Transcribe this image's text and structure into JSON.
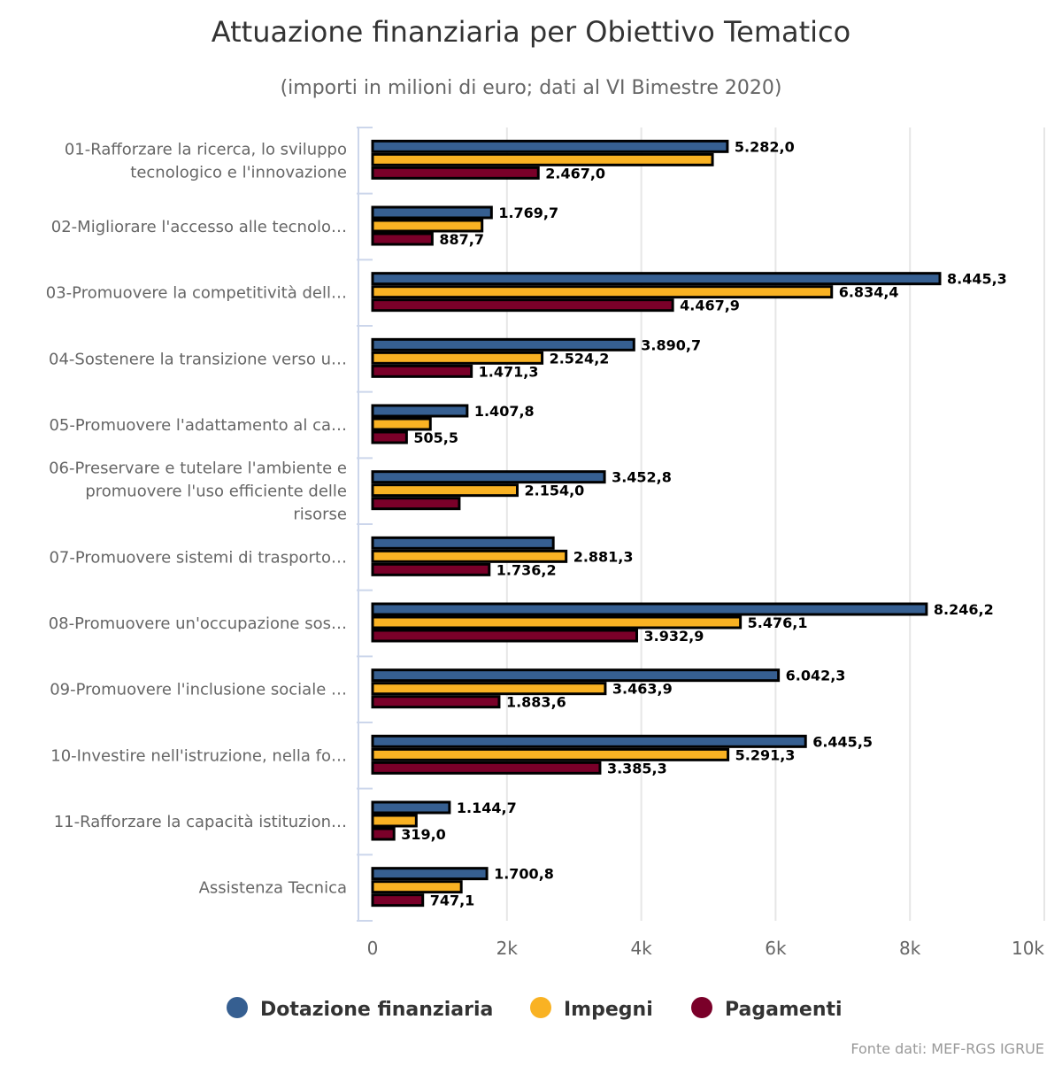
{
  "chart_data": {
    "type": "bar",
    "orientation": "horizontal",
    "title": "Attuazione finanziaria per Obiettivo Tematico",
    "subtitle": "(importi in milioni di euro; dati al VI Bimestre 2020)",
    "categories": [
      [
        "01-Rafforzare la ricerca, lo sviluppo",
        "tecnologico e l'innovazione"
      ],
      [
        "02-Migliorare l'accesso alle tecnolo…"
      ],
      [
        "03-Promuovere la competitività dell…"
      ],
      [
        "04-Sostenere la transizione verso u…"
      ],
      [
        "05-Promuovere l'adattamento al ca…"
      ],
      [
        "06-Preservare e tutelare l'ambiente e",
        "promuovere l'uso efficiente delle",
        "risorse"
      ],
      [
        "07-Promuovere sistemi di trasporto…"
      ],
      [
        "08-Promuovere un'occupazione sos…"
      ],
      [
        "09-Promuovere l'inclusione sociale …"
      ],
      [
        "10-Investire nell'istruzione, nella fo…"
      ],
      [
        "11-Rafforzare la capacità istituzion…"
      ],
      [
        "Assistenza Tecnica"
      ]
    ],
    "series": [
      {
        "name": "Dotazione finanziaria",
        "color": "#365f91",
        "values": [
          5282.0,
          1769.7,
          8445.3,
          3890.7,
          1407.8,
          3452.8,
          2690,
          8246.2,
          6042.3,
          6445.5,
          1144.7,
          1700.8
        ],
        "labels": [
          "5.282,0",
          "1.769,7",
          "8.445,3",
          "3.890,7",
          "1.407,8",
          "3.452,8",
          null,
          "8.246,2",
          "6.042,3",
          "6.445,5",
          "1.144,7",
          "1.700,8"
        ]
      },
      {
        "name": "Impegni",
        "color": "#f9b223",
        "values": [
          5060,
          1630,
          6834.4,
          2524.2,
          860,
          2154.0,
          2881.3,
          5476.1,
          3463.9,
          5291.3,
          650,
          1320
        ],
        "labels": [
          null,
          null,
          "6.834,4",
          "2.524,2",
          null,
          "2.154,0",
          "2.881,3",
          "5.476,1",
          "3.463,9",
          "5.291,3",
          null,
          null
        ]
      },
      {
        "name": "Pagamenti",
        "color": "#7a0029",
        "values": [
          2467.0,
          887.7,
          4467.9,
          1471.3,
          505.5,
          1290,
          1736.2,
          3932.9,
          1883.6,
          3385.3,
          319.0,
          747.1
        ],
        "labels": [
          "2.467,0",
          "887,7",
          "4.467,9",
          "1.471,3",
          "505,5",
          null,
          "1.736,2",
          "3.932,9",
          "1.883,6",
          "3.385,3",
          "319,0",
          "747,1"
        ]
      }
    ],
    "xlim": [
      0,
      10000
    ],
    "ticks": [
      0,
      2000,
      4000,
      6000,
      8000,
      10000
    ],
    "tick_labels": [
      "0",
      "2k",
      "4k",
      "6k",
      "8k",
      "10k"
    ],
    "grid": true,
    "legend_position": "bottom",
    "credit": "Fonte dati: MEF-RGS IGRUE"
  }
}
